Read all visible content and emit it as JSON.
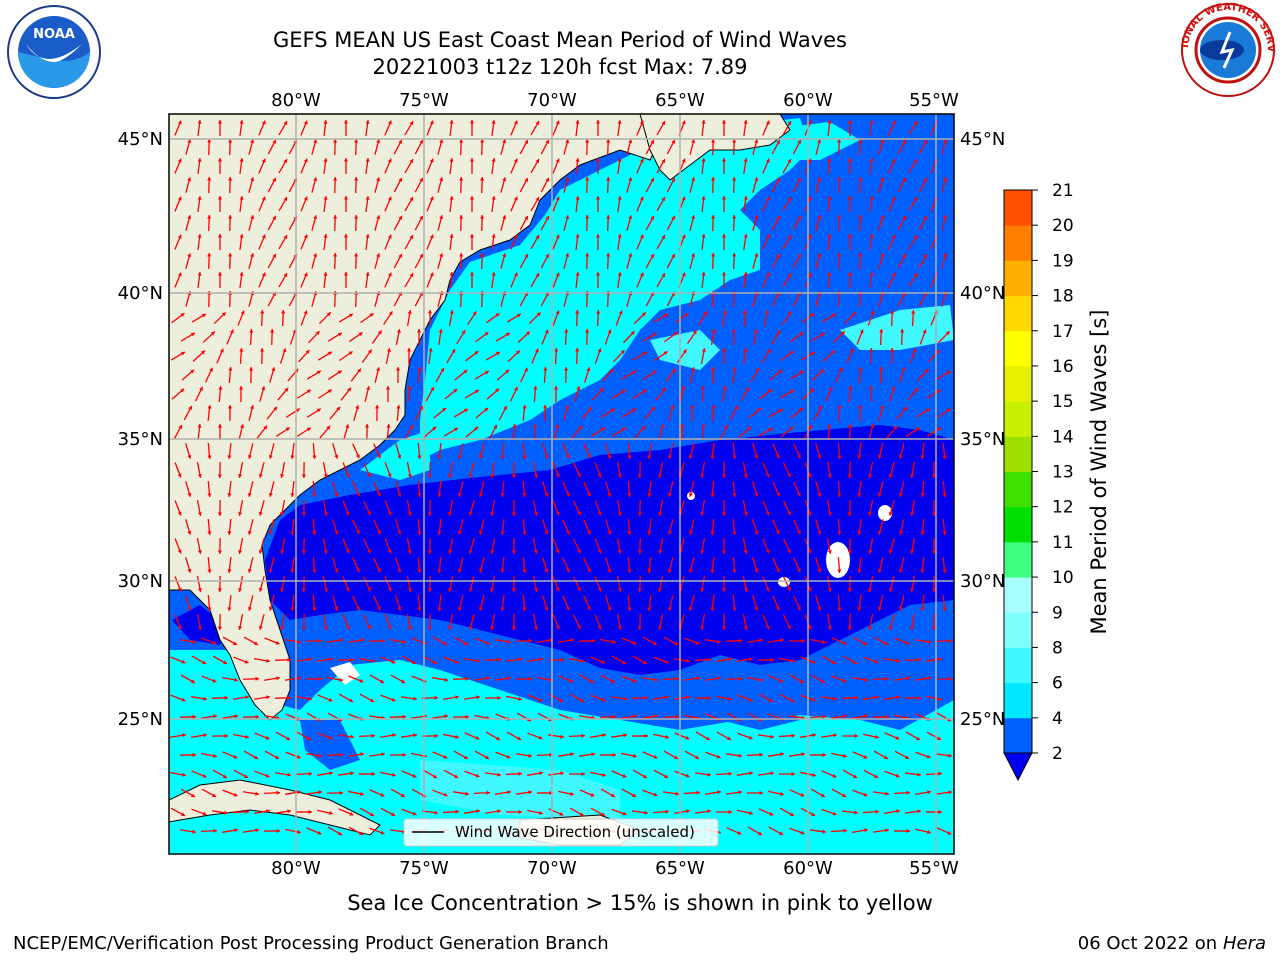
{
  "title": {
    "line1": "GEFS MEAN US East Coast Mean Period of Wind Waves",
    "line2": "20221003 t12z 120h fcst   Max: 7.89"
  },
  "logos": {
    "left": "NOAA",
    "right": "NATIONAL WEATHER SERVICE"
  },
  "map": {
    "lon_labels": [
      "80°W",
      "75°W",
      "70°W",
      "65°W",
      "60°W",
      "55°W"
    ],
    "lat_labels": [
      "45°N",
      "40°N",
      "35°N",
      "30°N",
      "25°N"
    ],
    "legend_label": "Wind Wave Direction (unscaled)"
  },
  "colorbar": {
    "label": "Mean Period of Wind Waves [s]",
    "ticks": [
      "2",
      "4",
      "6",
      "8",
      "9",
      "10",
      "11",
      "12",
      "13",
      "14",
      "15",
      "16",
      "17",
      "18",
      "19",
      "20",
      "21"
    ],
    "colors": [
      "#0060ff",
      "#00e8ff",
      "#40f8ff",
      "#80ffff",
      "#a8ffff",
      "#40ff80",
      "#00e000",
      "#40e000",
      "#a0e000",
      "#c8f000",
      "#e8f000",
      "#ffff00",
      "#ffd800",
      "#ffb000",
      "#ff8000",
      "#ff5000",
      "#ff1000",
      "#ff0000"
    ],
    "extend_color": "#0000ee"
  },
  "footer": {
    "sea_ice_note": "Sea Ice Concentration > 15% is shown in pink to yellow",
    "branch": "NCEP/EMC/Verification Post Processing Product Generation Branch",
    "date": "06 Oct 2022 on",
    "machine": "Hera"
  },
  "colors": {
    "land": "#eeeedc",
    "period_lt2": "#0000ee",
    "period_2_4": "#0060ff",
    "period_4_6": "#00ffff",
    "period_6_8": "#40f8ff",
    "arrow": "#ff0000",
    "grid": "#b0b0b0"
  }
}
